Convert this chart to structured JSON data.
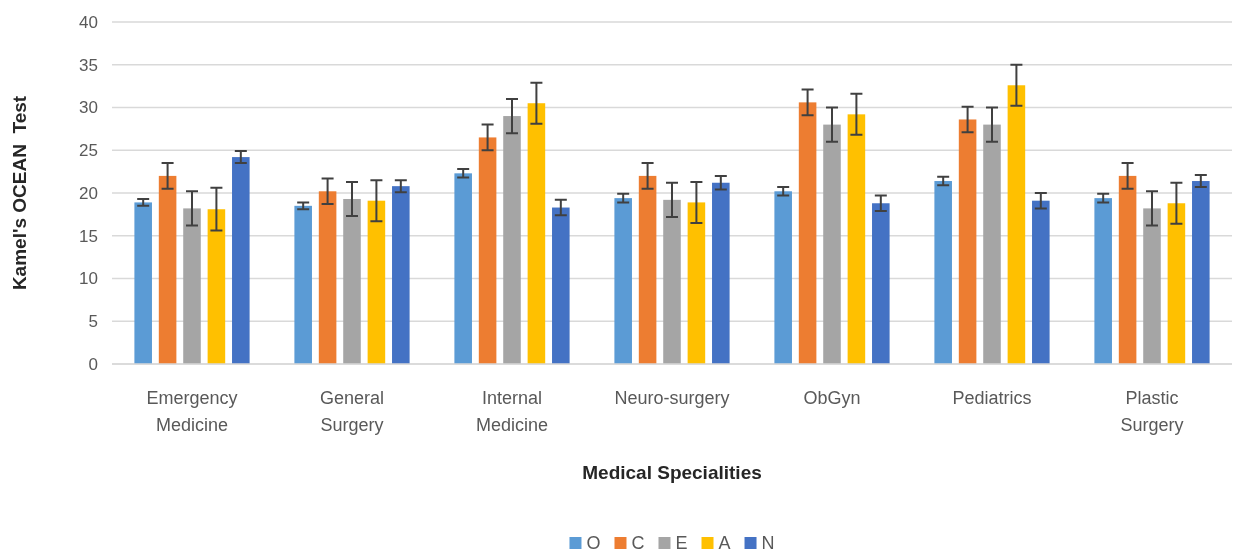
{
  "chart_data": {
    "type": "bar",
    "xlabel": "Medical Specialities",
    "ylabel": "Kamel's OCEAN  Test",
    "categories": [
      "Emergency Medicine",
      "General Surgery",
      "Internal Medicine",
      "Neuro-surgery",
      "ObGyn",
      "Pediatrics",
      "Plastic Surgery"
    ],
    "series": [
      {
        "name": "O",
        "color": "#5b9bd5",
        "values": [
          18.9,
          18.5,
          22.3,
          19.4,
          20.2,
          21.4,
          19.4
        ],
        "errors": [
          0.4,
          0.4,
          0.5,
          0.5,
          0.5,
          0.5,
          0.5
        ]
      },
      {
        "name": "C",
        "color": "#ed7d31",
        "values": [
          22,
          20.2,
          26.5,
          22,
          30.6,
          28.6,
          22
        ],
        "errors": [
          1.5,
          1.5,
          1.5,
          1.5,
          1.5,
          1.5,
          1.5
        ]
      },
      {
        "name": "E",
        "color": "#a5a5a5",
        "values": [
          18.2,
          19.3,
          29,
          19.2,
          28,
          28,
          18.2
        ],
        "errors": [
          2,
          2,
          2,
          2,
          2,
          2,
          2
        ]
      },
      {
        "name": "A",
        "color": "#ffc000",
        "values": [
          18.1,
          19.1,
          30.5,
          18.9,
          29.2,
          32.6,
          18.8
        ],
        "errors": [
          2.5,
          2.4,
          2.4,
          2.4,
          2.4,
          2.4,
          2.4
        ]
      },
      {
        "name": "N",
        "color": "#4472c4",
        "values": [
          24.2,
          20.8,
          18.3,
          21.2,
          18.8,
          19.1,
          21.4
        ],
        "errors": [
          0.7,
          0.7,
          0.9,
          0.8,
          0.9,
          0.9,
          0.7
        ]
      }
    ],
    "ylim": [
      0,
      40
    ],
    "yticks": [
      0,
      5,
      10,
      15,
      20,
      25,
      30,
      35,
      40
    ],
    "grid": "y",
    "legend": "bottom"
  }
}
